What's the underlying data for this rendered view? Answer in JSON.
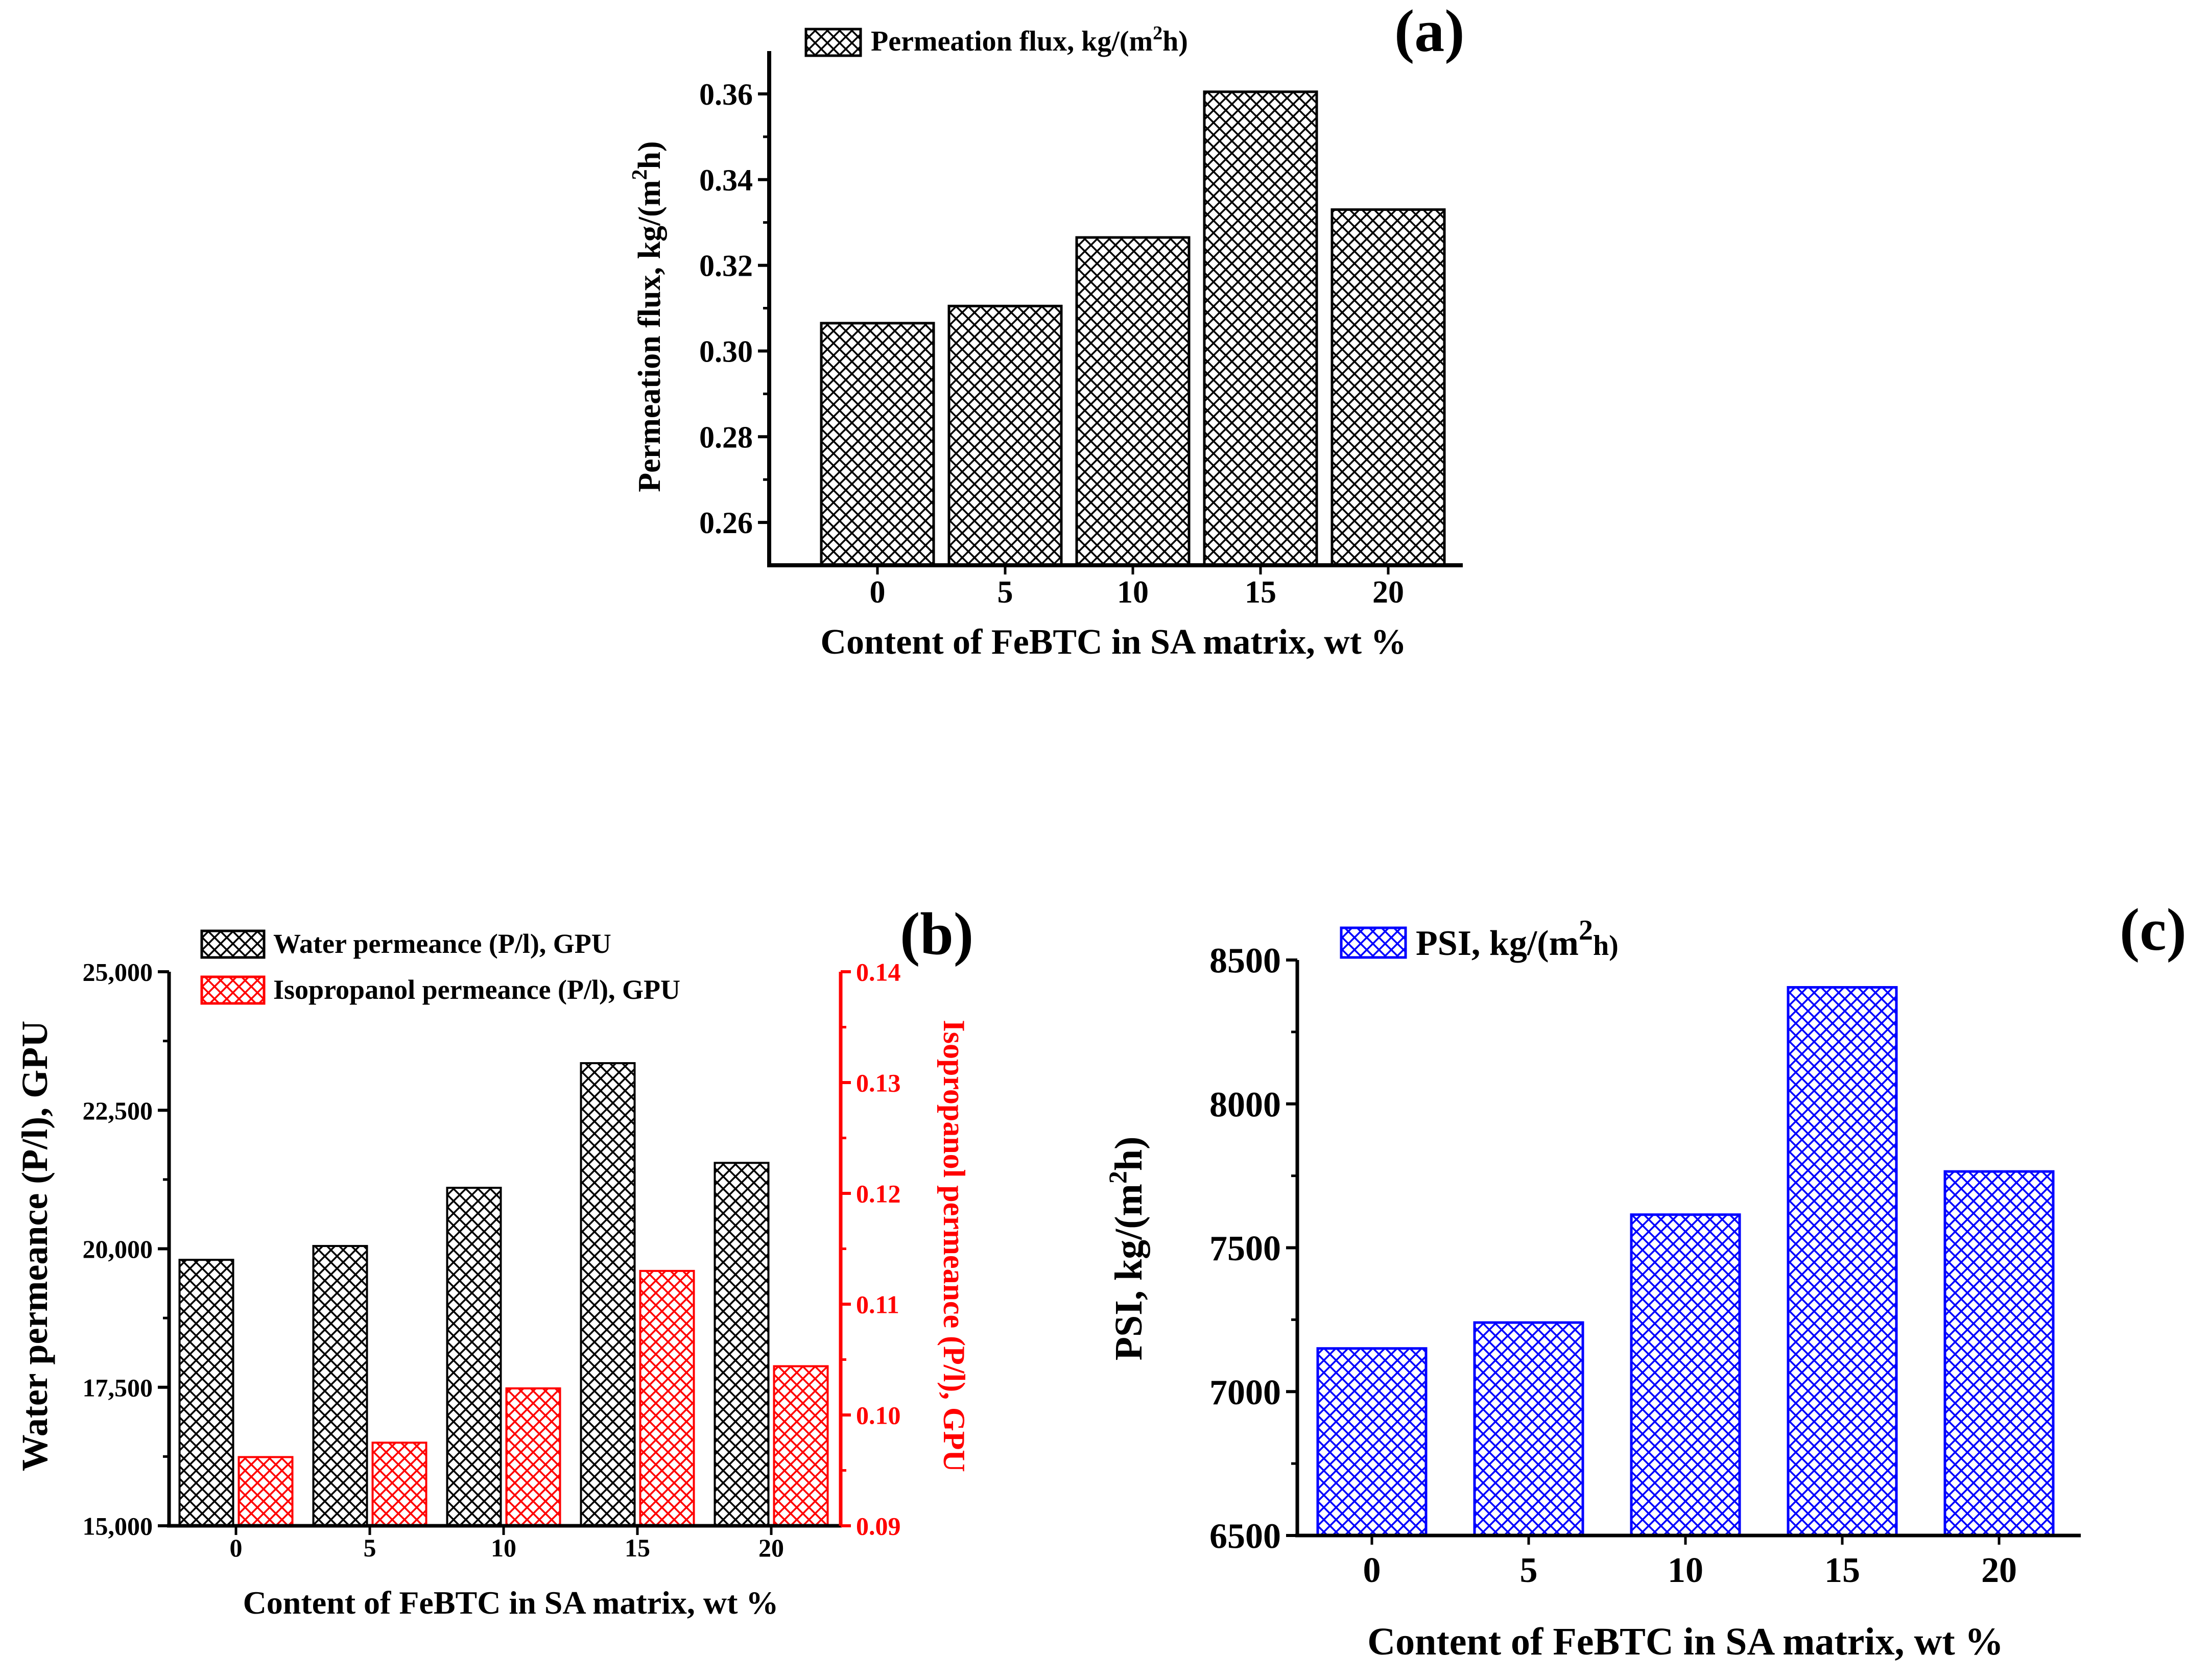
{
  "panels": {
    "a": {
      "letter": "(a)"
    },
    "b": {
      "letter": "(b)"
    },
    "c": {
      "letter": "(c)"
    }
  },
  "chart_data": [
    {
      "id": "a",
      "type": "bar",
      "title": "",
      "xlabel": "Content of FeBTC in SA matrix, wt %",
      "ylabel_parts": [
        "Permeation flux, kg/(m",
        "2",
        "h)"
      ],
      "categories": [
        "0",
        "5",
        "10",
        "15",
        "20"
      ],
      "ylim": [
        0.25,
        0.37
      ],
      "yticks": [
        0.26,
        0.28,
        0.3,
        0.32,
        0.34,
        0.36
      ],
      "ytick_labels": [
        "0.26",
        "0.28",
        "0.30",
        "0.32",
        "0.34",
        "0.36"
      ],
      "legend_position": "top-left",
      "series": [
        {
          "legend_parts": [
            "Permeation flux, kg/(m",
            "2",
            "h)"
          ],
          "color": "#000000",
          "values": [
            0.3065,
            0.3105,
            0.3265,
            0.3605,
            0.333
          ]
        }
      ]
    },
    {
      "id": "b",
      "type": "bar",
      "title": "",
      "xlabel": "Content of FeBTC in SA matrix, wt %",
      "ylabel": "Water permeance (P/l), GPU",
      "y2label": "Isopropanol permeance (P/l), GPU",
      "categories": [
        "0",
        "5",
        "10",
        "15",
        "20"
      ],
      "ylim": [
        15000,
        25000
      ],
      "yticks": [
        15000,
        17500,
        20000,
        22500,
        25000
      ],
      "ytick_labels": [
        "15,000",
        "17,500",
        "20,000",
        "22,500",
        "25,000"
      ],
      "y2lim": [
        0.09,
        0.14
      ],
      "y2ticks": [
        0.09,
        0.1,
        0.11,
        0.12,
        0.13,
        0.14
      ],
      "y2tick_labels": [
        "0.09",
        "0.10",
        "0.11",
        "0.12",
        "0.13",
        "0.14"
      ],
      "legend_position": "top-left",
      "series": [
        {
          "name": "Water permeance (P/l), GPU",
          "axis": "left",
          "color": "#000000",
          "values": [
            19800,
            20050,
            21100,
            23350,
            21550
          ]
        },
        {
          "name": "Isopropanol permeance (P/l), GPU",
          "axis": "right",
          "color": "#ff0000",
          "values": [
            0.0962,
            0.0975,
            0.1024,
            0.113,
            0.1044
          ]
        }
      ]
    },
    {
      "id": "c",
      "type": "bar",
      "title": "",
      "xlabel": "Content of FeBTC in SA matrix, wt %",
      "ylabel_parts": [
        "PSI, kg/(m",
        "2",
        "h)"
      ],
      "categories": [
        "0",
        "5",
        "10",
        "15",
        "20"
      ],
      "ylim": [
        6500,
        8500
      ],
      "yticks": [
        6500,
        7000,
        7500,
        8000,
        8500
      ],
      "ytick_labels": [
        "6500",
        "7000",
        "7500",
        "8000",
        "8500"
      ],
      "legend_position": "top-left",
      "series": [
        {
          "legend_parts": [
            "PSI, kg/(m",
            "2",
            "h)"
          ],
          "color": "#0000ff",
          "values": [
            7150,
            7240,
            7615,
            8405,
            7765
          ]
        }
      ]
    }
  ]
}
